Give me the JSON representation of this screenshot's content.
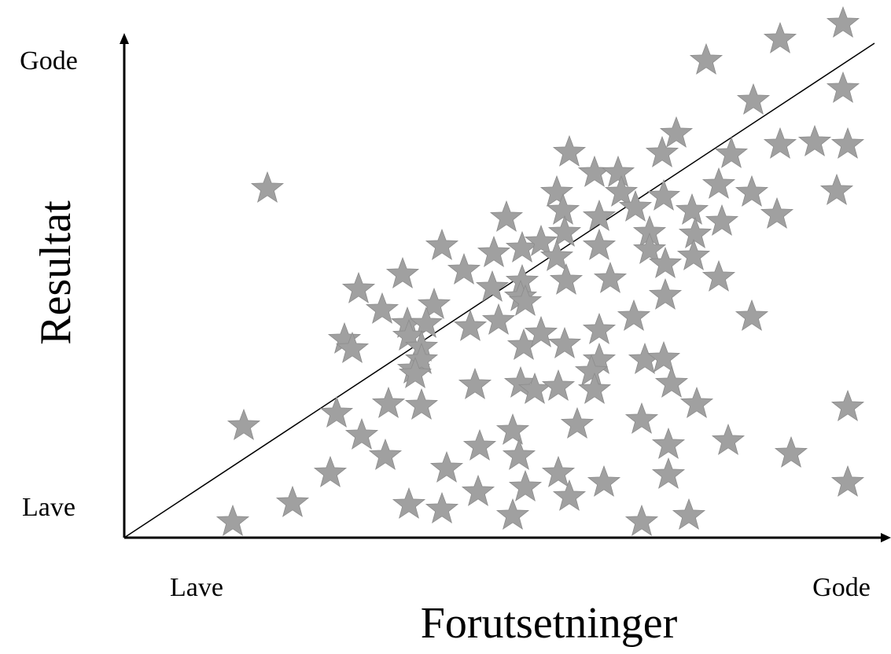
{
  "chart_data": {
    "type": "scatter",
    "x_label": "Forutsetninger",
    "y_label": "Resultat",
    "color": "#a0a0a0",
    "xlim": [
      0,
      96
    ],
    "ylim": [
      0,
      68
    ],
    "xticks": [
      {
        "value": 9.2,
        "label": "Lave"
      },
      {
        "value": 91.2,
        "label": "Gode"
      }
    ],
    "yticks": [
      {
        "value": 3.6,
        "label": "Lave"
      },
      {
        "value": 60.4,
        "label": "Gode"
      }
    ],
    "x": [
      91.4,
      83.4,
      74,
      91.4,
      80,
      18.2,
      70.2,
      68.4,
      77.2,
      83.4,
      87.8,
      92,
      56.6,
      59.8,
      62.8,
      55,
      63.2,
      75.6,
      79.8,
      90.6,
      55.8,
      60.4,
      65,
      68.6,
      72.2,
      76,
      83,
      48.6,
      40.4,
      47,
      50.6,
      53,
      56,
      60.4,
      55,
      66.8,
      72.6,
      66.8,
      68.8,
      72.4,
      43.2,
      35.4,
      29.8,
      46.8,
      50.6,
      56.2,
      61.8,
      75.6,
      68.8,
      32.8,
      39.4,
      50.4,
      51,
      36,
      38.4,
      44,
      47.6,
      64.8,
      79.8,
      28,
      29,
      36.2,
      37.8,
      50.8,
      53,
      56,
      60.4,
      36.8,
      37.8,
      37,
      60.4,
      59.4,
      66.2,
      68.6,
      69.6,
      44.6,
      50.4,
      52.2,
      55.2,
      59.8,
      33.6,
      37.8,
      27,
      72.8,
      92,
      15.2,
      30.2,
      49.4,
      57.6,
      65.8,
      45.2,
      69.2,
      76.8,
      33.2,
      50.2,
      84.8,
      26.2,
      41,
      55.2,
      69.2,
      21.4,
      36.2,
      40.4,
      45,
      51,
      56.6,
      61,
      92,
      13.8,
      49.4,
      65.8,
      71.8
    ],
    "y": [
      65.4,
      63.4,
      60.7,
      57.1,
      55.6,
      44.4,
      51.4,
      48.9,
      48.8,
      50,
      50.3,
      50,
      49,
      46.4,
      46.4,
      43.9,
      43.9,
      44.9,
      43.9,
      44.1,
      41.6,
      40.8,
      42,
      43.4,
      41.6,
      40.2,
      41.1,
      40.7,
      37.1,
      36.2,
      36.8,
      37.6,
      38.8,
      37.1,
      35.7,
      38.8,
      38.6,
      36.6,
      34.8,
      35.8,
      34,
      33.5,
      31.6,
      31.8,
      32.6,
      32.7,
      32.9,
      33.1,
      30.8,
      29,
      29.6,
      30.6,
      30,
      27.2,
      27.2,
      26.8,
      27.6,
      28.1,
      28.1,
      25.2,
      24,
      25.6,
      24.2,
      24.4,
      26,
      24.6,
      26.4,
      21.4,
      22.6,
      20.8,
      22.6,
      21.1,
      22.6,
      22.8,
      19.6,
      19.4,
      19.6,
      18.8,
      19.2,
      18.8,
      17,
      16.8,
      15.8,
      17,
      16.6,
      14.2,
      13,
      13.6,
      14.4,
      15,
      11.6,
      11.8,
      12.3,
      10.4,
      10.4,
      10.7,
      8.2,
      8.8,
      8.2,
      8,
      4.4,
      4.2,
      3.6,
      5.8,
      6.4,
      5.2,
      7,
      7,
      2,
      2.8,
      2,
      2.8
    ]
  }
}
